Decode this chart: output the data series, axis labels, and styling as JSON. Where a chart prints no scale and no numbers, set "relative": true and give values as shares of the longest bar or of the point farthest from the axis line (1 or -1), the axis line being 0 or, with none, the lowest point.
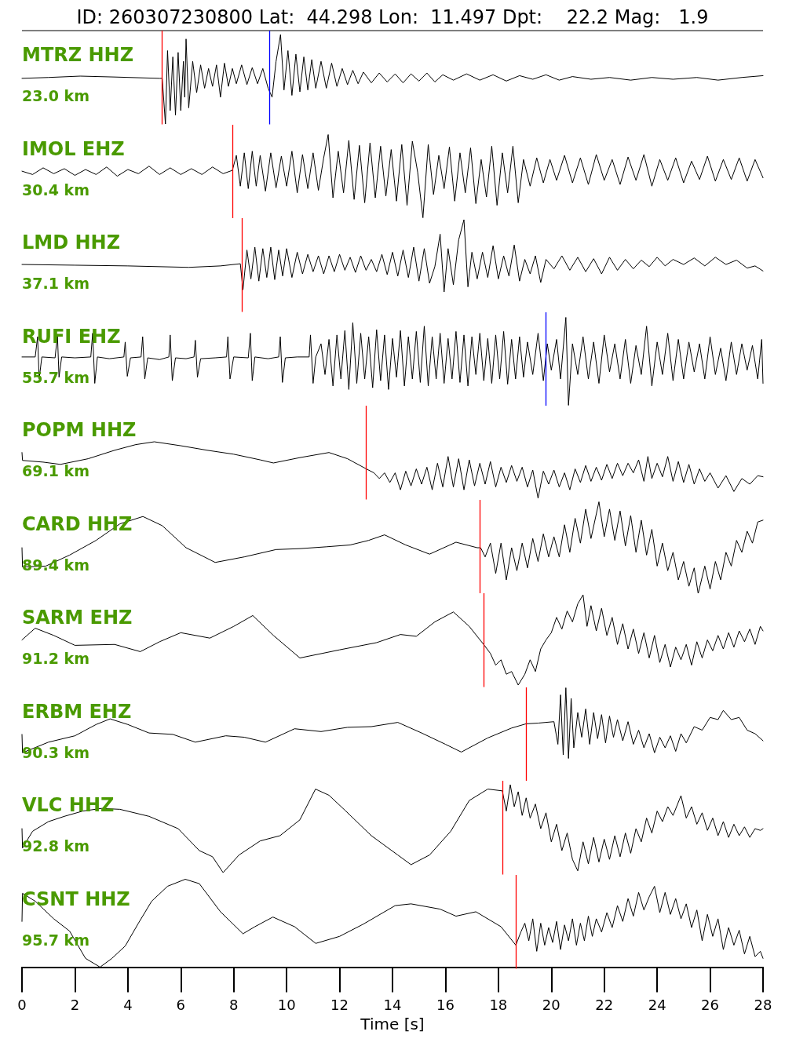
{
  "chart_data": [
    {
      "type": "line",
      "title": "ID: 260307230800 Lat:  44.298 Lon:  11.497 Dpt:    22.2 Mag:   1.9",
      "relative": true,
      "xlim": [
        0,
        28
      ],
      "tick_labels": false,
      "series": [
        {
          "name": "MTRZ HHZ",
          "color": "#000000",
          "x": [
            0,
            1,
            2.2,
            3.5,
            5.2,
            5.3,
            5.42,
            5.5,
            5.6,
            5.7,
            5.8,
            5.9,
            6,
            6.1,
            6.15,
            6.2,
            6.3,
            6.45,
            6.6,
            6.75,
            6.9,
            7.05,
            7.2,
            7.35,
            7.5,
            7.65,
            7.8,
            7.95,
            8.1,
            8.3,
            8.5,
            8.7,
            8.9,
            9.1,
            9.3,
            9.45,
            9.6,
            9.77,
            9.9,
            10.05,
            10.2,
            10.35,
            10.5,
            10.65,
            10.8,
            10.95,
            11.1,
            11.3,
            11.5,
            11.7,
            11.9,
            12.1,
            12.3,
            12.5,
            12.7,
            12.9,
            13.2,
            13.5,
            13.8,
            14.1,
            14.4,
            14.7,
            15,
            15.3,
            15.6,
            15.9,
            16.3,
            16.8,
            17.3,
            17.8,
            18.3,
            18.8,
            19.3,
            19.8,
            20.3,
            20.8,
            21.5,
            22.2,
            23,
            23.8,
            24.6,
            25.5,
            26.3,
            27.2,
            28
          ],
          "values": [
            0.51,
            0.52,
            0.535,
            0.525,
            0.51,
            0.51,
            0,
            0.82,
            0.15,
            0.75,
            0.1,
            0.8,
            0.15,
            0.7,
            0.3,
            0.95,
            0.18,
            0.7,
            0.35,
            0.66,
            0.4,
            0.62,
            0.42,
            0.66,
            0.3,
            0.68,
            0.42,
            0.62,
            0.45,
            0.66,
            0.44,
            0.63,
            0.45,
            0.62,
            0.4,
            0.3,
            0.7,
            1,
            0.38,
            0.82,
            0.32,
            0.78,
            0.36,
            0.75,
            0.38,
            0.72,
            0.4,
            0.7,
            0.4,
            0.68,
            0.42,
            0.62,
            0.44,
            0.6,
            0.45,
            0.58,
            0.46,
            0.57,
            0.47,
            0.56,
            0.46,
            0.56,
            0.48,
            0.57,
            0.47,
            0.55,
            0.49,
            0.56,
            0.49,
            0.55,
            0.48,
            0.54,
            0.5,
            0.55,
            0.49,
            0.53,
            0.5,
            0.52,
            0.49,
            0.52,
            0.5,
            0.52,
            0.49,
            0.52,
            0.54
          ]
        }
      ],
      "annotations": [
        "23.0 km"
      ],
      "ref_lines": [
        {
          "axis": "x",
          "value": 5.3,
          "color": "#ff0000"
        },
        {
          "axis": "x",
          "value": 9.35,
          "color": "#0000ff"
        }
      ]
    },
    {
      "type": "line",
      "relative": true,
      "xlim": [
        0,
        28
      ],
      "tick_labels": false,
      "series": [
        {
          "name": "IMOL EHZ",
          "color": "#000000",
          "x": [
            0,
            0.4,
            0.8,
            1.2,
            1.6,
            2,
            2.4,
            2.8,
            3.2,
            3.6,
            4,
            4.4,
            4.8,
            5.2,
            5.6,
            6,
            6.4,
            6.8,
            7.2,
            7.6,
            7.95,
            8.1,
            8.25,
            8.4,
            8.55,
            8.7,
            8.85,
            9,
            9.2,
            9.4,
            9.6,
            9.8,
            10,
            10.2,
            10.4,
            10.6,
            10.8,
            11,
            11.2,
            11.4,
            11.57,
            11.75,
            11.95,
            12.15,
            12.35,
            12.55,
            12.75,
            12.95,
            13.15,
            13.35,
            13.55,
            13.75,
            13.95,
            14.15,
            14.35,
            14.55,
            14.75,
            14.95,
            15.15,
            15.35,
            15.55,
            15.75,
            15.95,
            16.15,
            16.35,
            16.55,
            16.75,
            16.95,
            17.15,
            17.35,
            17.55,
            17.75,
            17.95,
            18.15,
            18.35,
            18.55,
            18.75,
            18.95,
            19.2,
            19.45,
            19.7,
            19.95,
            20.2,
            20.5,
            20.8,
            21.1,
            21.4,
            21.7,
            22,
            22.3,
            22.6,
            22.9,
            23.2,
            23.5,
            23.8,
            24.1,
            24.4,
            24.7,
            25,
            25.3,
            25.6,
            25.9,
            26.2,
            26.5,
            26.8,
            27.1,
            27.4,
            27.7,
            28
          ],
          "values": [
            0.56,
            0.52,
            0.6,
            0.53,
            0.59,
            0.51,
            0.58,
            0.52,
            0.61,
            0.5,
            0.58,
            0.53,
            0.62,
            0.52,
            0.6,
            0.52,
            0.59,
            0.52,
            0.61,
            0.53,
            0.57,
            0.75,
            0.38,
            0.78,
            0.35,
            0.8,
            0.38,
            0.75,
            0.32,
            0.78,
            0.36,
            0.74,
            0.38,
            0.8,
            0.3,
            0.76,
            0.35,
            0.78,
            0.33,
            0.72,
            1,
            0.24,
            0.8,
            0.3,
            0.93,
            0.22,
            0.87,
            0.18,
            0.9,
            0.24,
            0.86,
            0.26,
            0.82,
            0.2,
            0.88,
            0.15,
            0.92,
            0.55,
            0,
            0.88,
            0.28,
            0.75,
            0.35,
            0.85,
            0.2,
            0.78,
            0.3,
            0.84,
            0.17,
            0.7,
            0.25,
            0.86,
            0.15,
            0.78,
            0.3,
            0.86,
            0.18,
            0.7,
            0.38,
            0.72,
            0.42,
            0.7,
            0.45,
            0.75,
            0.42,
            0.72,
            0.4,
            0.76,
            0.45,
            0.7,
            0.4,
            0.73,
            0.45,
            0.76,
            0.38,
            0.7,
            0.45,
            0.72,
            0.42,
            0.68,
            0.46,
            0.74,
            0.44,
            0.7,
            0.46,
            0.72,
            0.44,
            0.7,
            0.48
          ]
        }
      ],
      "annotations": [
        "30.4 km"
      ],
      "ref_lines": [
        {
          "axis": "x",
          "value": 7.95,
          "color": "#ff0000"
        }
      ]
    },
    {
      "type": "line",
      "relative": true,
      "xlim": [
        0,
        28
      ],
      "tick_labels": false,
      "series": [
        {
          "name": "LMD HHZ",
          "color": "#000000",
          "x": [
            0,
            2,
            4,
            6.3,
            7.5,
            8.25,
            8.35,
            8.5,
            8.65,
            8.8,
            8.95,
            9.1,
            9.25,
            9.4,
            9.55,
            9.7,
            9.85,
            10,
            10.2,
            10.4,
            10.6,
            10.8,
            11,
            11.2,
            11.4,
            11.6,
            11.8,
            12,
            12.2,
            12.4,
            12.6,
            12.8,
            13,
            13.2,
            13.4,
            13.6,
            13.8,
            14,
            14.2,
            14.4,
            14.6,
            14.8,
            15,
            15.2,
            15.4,
            15.6,
            15.8,
            15.95,
            16.1,
            16.3,
            16.5,
            16.7,
            16.85,
            17,
            17.2,
            17.4,
            17.6,
            17.8,
            18,
            18.2,
            18.4,
            18.6,
            18.8,
            19,
            19.2,
            19.4,
            19.6,
            19.8,
            20.1,
            20.4,
            20.7,
            21,
            21.3,
            21.6,
            21.9,
            22.2,
            22.5,
            22.8,
            23.1,
            23.4,
            23.7,
            24,
            24.3,
            24.6,
            25,
            25.4,
            25.8,
            26.2,
            26.6,
            27,
            27.4,
            27.7,
            28
          ],
          "values": [
            0.38,
            0.37,
            0.36,
            0.34,
            0.36,
            0.39,
            0.03,
            0.58,
            0.18,
            0.62,
            0.15,
            0.6,
            0.2,
            0.62,
            0.17,
            0.58,
            0.22,
            0.6,
            0.2,
            0.55,
            0.25,
            0.52,
            0.28,
            0.5,
            0.25,
            0.5,
            0.28,
            0.52,
            0.3,
            0.48,
            0.27,
            0.5,
            0.3,
            0.45,
            0.28,
            0.52,
            0.24,
            0.55,
            0.22,
            0.58,
            0.2,
            0.62,
            0.15,
            0.6,
            0.12,
            0.35,
            0.8,
            0,
            0.6,
            0.1,
            0.72,
            1,
            0.07,
            0.55,
            0.18,
            0.55,
            0.2,
            0.64,
            0.18,
            0.5,
            0.22,
            0.65,
            0.15,
            0.45,
            0.25,
            0.5,
            0.13,
            0.45,
            0.32,
            0.5,
            0.3,
            0.48,
            0.28,
            0.46,
            0.25,
            0.48,
            0.3,
            0.45,
            0.32,
            0.44,
            0.35,
            0.48,
            0.36,
            0.45,
            0.38,
            0.47,
            0.36,
            0.48,
            0.38,
            0.44,
            0.33,
            0.36,
            0.29
          ]
        }
      ],
      "annotations": [
        "37.1 km"
      ],
      "ref_lines": [
        {
          "axis": "x",
          "value": 8.3,
          "color": "#ff0000"
        }
      ]
    },
    {
      "type": "line",
      "relative": true,
      "xlim": [
        0,
        28
      ],
      "tick_labels": false,
      "series": [
        {
          "name": "RUFI EHZ",
          "color": "#000000",
          "x": [
            0,
            0.5,
            0.59,
            0.65,
            0.75,
            1.25,
            1.34,
            1.4,
            1.5,
            2,
            2.6,
            2.67,
            2.75,
            2.85,
            3.3,
            3.85,
            3.9,
            3.98,
            4.1,
            4.5,
            4.56,
            4.64,
            4.75,
            5.2,
            5.55,
            5.6,
            5.68,
            5.8,
            6.2,
            6.5,
            6.55,
            6.63,
            6.75,
            7.3,
            7.73,
            7.78,
            7.86,
            8,
            8.55,
            8.63,
            8.7,
            8.8,
            9.3,
            9.7,
            9.76,
            9.84,
            9.95,
            10.4,
            10.85,
            10.9,
            11,
            11.1,
            11.3,
            11.45,
            11.6,
            11.75,
            11.9,
            12.05,
            12.2,
            12.35,
            12.5,
            12.65,
            12.8,
            12.95,
            13.1,
            13.25,
            13.4,
            13.55,
            13.7,
            13.85,
            14,
            14.15,
            14.3,
            14.45,
            14.6,
            14.75,
            14.9,
            15.05,
            15.2,
            15.35,
            15.5,
            15.65,
            15.8,
            15.95,
            16.1,
            16.25,
            16.4,
            16.55,
            16.7,
            16.85,
            17,
            17.15,
            17.3,
            17.45,
            17.6,
            17.75,
            17.9,
            18.05,
            18.2,
            18.35,
            18.5,
            18.65,
            18.8,
            18.95,
            19.1,
            19.3,
            19.5,
            19.7,
            19.85,
            20,
            20.2,
            20.35,
            20.55,
            20.65,
            20.8,
            21,
            21.2,
            21.4,
            21.6,
            21.8,
            22,
            22.2,
            22.4,
            22.6,
            22.8,
            23,
            23.2,
            23.4,
            23.6,
            23.8,
            24,
            24.2,
            24.4,
            24.6,
            24.8,
            25,
            25.2,
            25.4,
            25.6,
            25.8,
            26,
            26.2,
            26.4,
            26.6,
            26.8,
            27,
            27.2,
            27.4,
            27.6,
            27.8,
            27.95,
            28
          ],
          "values": [
            0.55,
            0.55,
            0.78,
            0.3,
            0.55,
            0.54,
            0.8,
            0.32,
            0.55,
            0.54,
            0.55,
            0.82,
            0.25,
            0.55,
            0.53,
            0.55,
            0.72,
            0.33,
            0.54,
            0.55,
            0.78,
            0.3,
            0.54,
            0.52,
            0.55,
            0.8,
            0.28,
            0.54,
            0.53,
            0.55,
            0.74,
            0.32,
            0.53,
            0.54,
            0.55,
            0.78,
            0.3,
            0.55,
            0.54,
            0.82,
            0.28,
            0.55,
            0.53,
            0.55,
            0.78,
            0.26,
            0.54,
            0.55,
            0.55,
            0.8,
            0.25,
            0.55,
            0.7,
            0.35,
            0.75,
            0.22,
            0.8,
            0.3,
            0.85,
            0.18,
            0.94,
            0.25,
            0.82,
            0.3,
            0.78,
            0.2,
            0.86,
            0.28,
            0.8,
            0.18,
            0.76,
            0.32,
            0.85,
            0.22,
            0.78,
            0.3,
            0.84,
            0.26,
            0.9,
            0.22,
            0.78,
            0.3,
            0.82,
            0.25,
            0.76,
            0.3,
            0.84,
            0.26,
            0.8,
            0.22,
            0.78,
            0.35,
            0.82,
            0.28,
            0.76,
            0.25,
            0.8,
            0.3,
            0.84,
            0.24,
            0.75,
            0.3,
            0.78,
            0.32,
            0.72,
            0.35,
            0.82,
            0.28,
            0.7,
            0.4,
            0.75,
            0.3,
            1,
            0,
            0.7,
            0.35,
            0.78,
            0.3,
            0.72,
            0.25,
            0.8,
            0.38,
            0.7,
            0.3,
            0.75,
            0.25,
            0.68,
            0.35,
            0.9,
            0.22,
            0.72,
            0.35,
            0.82,
            0.28,
            0.75,
            0.3,
            0.72,
            0.38,
            0.7,
            0.3,
            0.78,
            0.35,
            0.65,
            0.28,
            0.72,
            0.35,
            0.7,
            0.4,
            0.68,
            0.3,
            0.75,
            0.25
          ]
        }
      ],
      "annotations": [
        "55.7 km"
      ],
      "ref_lines": [
        {
          "axis": "x",
          "value": 19.8,
          "color": "#0000ff"
        }
      ]
    },
    {
      "type": "line",
      "relative": true,
      "xlim": [
        0,
        28
      ],
      "tick_labels": false,
      "series": [
        {
          "name": "POPM HHZ",
          "color": "#000000",
          "x": [
            0,
            0.02,
            0.8,
            1.45,
            2.5,
            3.5,
            4.3,
            5,
            6,
            7,
            8,
            9,
            9.5,
            10.5,
            11.6,
            12.3,
            13.05,
            13.3,
            13.5,
            13.7,
            13.9,
            14.1,
            14.3,
            14.5,
            14.7,
            14.9,
            15.1,
            15.3,
            15.5,
            15.7,
            15.9,
            16.1,
            16.3,
            16.5,
            16.7,
            16.9,
            17.1,
            17.3,
            17.5,
            17.7,
            17.9,
            18.1,
            18.3,
            18.5,
            18.7,
            18.9,
            19.1,
            19.3,
            19.5,
            19.7,
            19.9,
            20.1,
            20.3,
            20.5,
            20.7,
            20.9,
            21.1,
            21.3,
            21.5,
            21.7,
            21.9,
            22.1,
            22.3,
            22.5,
            22.7,
            22.9,
            23.1,
            23.3,
            23.5,
            23.65,
            23.8,
            24,
            24.2,
            24.4,
            24.6,
            24.8,
            25,
            25.2,
            25.4,
            25.6,
            25.8,
            26,
            26.3,
            26.6,
            26.9,
            27.2,
            27.5,
            27.8,
            28
          ],
          "values": [
            0.81,
            0.67,
            0.64,
            0.6,
            0.7,
            0.85,
            0.95,
            1,
            0.93,
            0.85,
            0.78,
            0.68,
            0.625,
            0.72,
            0.81,
            0.7,
            0.51,
            0.45,
            0.35,
            0.45,
            0.28,
            0.45,
            0.15,
            0.48,
            0.22,
            0.52,
            0.25,
            0.55,
            0.15,
            0.62,
            0.2,
            0.74,
            0.2,
            0.7,
            0.15,
            0.68,
            0.22,
            0.62,
            0.25,
            0.65,
            0.2,
            0.55,
            0.28,
            0.58,
            0.3,
            0.55,
            0.2,
            0.5,
            0,
            0.48,
            0.25,
            0.5,
            0.2,
            0.45,
            0.15,
            0.52,
            0.28,
            0.58,
            0.3,
            0.55,
            0.32,
            0.6,
            0.35,
            0.62,
            0.4,
            0.62,
            0.45,
            0.68,
            0.3,
            0.74,
            0.35,
            0.62,
            0.38,
            0.74,
            0.3,
            0.65,
            0.28,
            0.6,
            0.25,
            0.52,
            0.3,
            0.45,
            0.18,
            0.4,
            0.12,
            0.35,
            0.25,
            0.4,
            0.38
          ]
        }
      ],
      "annotations": [
        "69.1 km"
      ],
      "ref_lines": [
        {
          "axis": "x",
          "value": 13.0,
          "color": "#ff0000"
        }
      ]
    },
    {
      "type": "line",
      "relative": true,
      "xlim": [
        0,
        28
      ],
      "tick_labels": false,
      "series": [
        {
          "name": "CARD HHZ",
          "color": "#000000",
          "x": [
            0,
            0.02,
            0.9,
            1.8,
            2.8,
            3.7,
            4.57,
            5.3,
            6.2,
            7.3,
            8.4,
            9.6,
            10.5,
            11.5,
            12.4,
            13.1,
            13.7,
            14.5,
            15.4,
            16.4,
            17.2,
            17.33,
            17.5,
            17.7,
            17.9,
            18.1,
            18.3,
            18.5,
            18.7,
            18.9,
            19.1,
            19.3,
            19.5,
            19.7,
            19.9,
            20.1,
            20.3,
            20.5,
            20.7,
            20.9,
            21.1,
            21.3,
            21.5,
            21.8,
            22,
            22.2,
            22.4,
            22.6,
            22.8,
            23,
            23.2,
            23.4,
            23.6,
            23.8,
            24,
            24.2,
            24.4,
            24.6,
            24.8,
            25,
            25.2,
            25.4,
            25.55,
            25.8,
            26,
            26.2,
            26.4,
            26.6,
            26.8,
            27,
            27.2,
            27.4,
            27.6,
            27.8,
            28
          ],
          "values": [
            0.5,
            0.29,
            0.3,
            0.42,
            0.58,
            0.76,
            0.84,
            0.74,
            0.5,
            0.34,
            0.4,
            0.48,
            0.49,
            0.51,
            0.53,
            0.58,
            0.64,
            0.53,
            0.43,
            0.56,
            0.5,
            0.5,
            0.4,
            0.55,
            0.22,
            0.55,
            0.15,
            0.5,
            0.25,
            0.55,
            0.28,
            0.6,
            0.35,
            0.65,
            0.4,
            0.62,
            0.4,
            0.75,
            0.45,
            0.82,
            0.55,
            0.92,
            0.6,
            1,
            0.62,
            0.92,
            0.58,
            0.9,
            0.52,
            0.85,
            0.45,
            0.8,
            0.42,
            0.7,
            0.3,
            0.55,
            0.25,
            0.45,
            0.15,
            0.35,
            0.08,
            0.28,
            0,
            0.3,
            0.05,
            0.35,
            0.15,
            0.45,
            0.3,
            0.58,
            0.45,
            0.68,
            0.55,
            0.78,
            0.8
          ]
        }
      ],
      "annotations": [
        "89.4 km"
      ],
      "ref_lines": [
        {
          "axis": "x",
          "value": 17.3,
          "color": "#ff0000"
        }
      ]
    },
    {
      "type": "line",
      "relative": true,
      "xlim": [
        0,
        28
      ],
      "tick_labels": false,
      "series": [
        {
          "name": "SARM EHZ",
          "color": "#000000",
          "x": [
            0,
            0.5,
            1.2,
            2,
            3.5,
            4.47,
            5.2,
            6,
            7.1,
            8,
            8.72,
            9.5,
            10.5,
            12,
            13.4,
            14.3,
            14.9,
            15.6,
            16.3,
            16.9,
            17.47,
            17.7,
            17.9,
            18.1,
            18.3,
            18.5,
            18.75,
            19,
            19.2,
            19.4,
            19.6,
            19.8,
            20,
            20.2,
            20.4,
            20.6,
            20.8,
            21,
            21.2,
            21.35,
            21.5,
            21.7,
            21.9,
            22.1,
            22.3,
            22.5,
            22.7,
            22.9,
            23.1,
            23.3,
            23.5,
            23.7,
            23.9,
            24.1,
            24.3,
            24.5,
            24.7,
            24.9,
            25.1,
            25.3,
            25.5,
            25.7,
            25.9,
            26.1,
            26.3,
            26.5,
            26.7,
            26.9,
            27.1,
            27.3,
            27.5,
            27.7,
            27.9,
            28
          ],
          "values": [
            0.5,
            0.63,
            0.55,
            0.44,
            0.45,
            0.37,
            0.48,
            0.58,
            0.52,
            0.65,
            0.77,
            0.55,
            0.3,
            0.39,
            0.47,
            0.56,
            0.54,
            0.7,
            0.81,
            0.65,
            0.44,
            0.35,
            0.22,
            0.28,
            0.12,
            0.15,
            0,
            0.12,
            0.28,
            0.15,
            0.4,
            0.5,
            0.58,
            0.75,
            0.62,
            0.82,
            0.7,
            0.9,
            1,
            0.65,
            0.88,
            0.6,
            0.85,
            0.55,
            0.75,
            0.45,
            0.68,
            0.4,
            0.62,
            0.35,
            0.58,
            0.3,
            0.55,
            0.25,
            0.45,
            0.2,
            0.42,
            0.28,
            0.45,
            0.22,
            0.48,
            0.3,
            0.5,
            0.38,
            0.55,
            0.4,
            0.58,
            0.42,
            0.6,
            0.48,
            0.62,
            0.45,
            0.65,
            0.6
          ]
        }
      ],
      "annotations": [
        "91.2 km"
      ],
      "ref_lines": [
        {
          "axis": "x",
          "value": 17.45,
          "color": "#ff0000"
        }
      ]
    },
    {
      "type": "line",
      "relative": true,
      "xlim": [
        0,
        28
      ],
      "tick_labels": false,
      "series": [
        {
          "name": "ERBM EHZ",
          "color": "#000000",
          "x": [
            0,
            0.02,
            1,
            2,
            2.8,
            3.33,
            4,
            4.8,
            5.7,
            6.55,
            7.7,
            8.4,
            9.2,
            10.3,
            11.3,
            12.3,
            13.2,
            14.2,
            15.1,
            16,
            16.6,
            17.6,
            18.5,
            19.05,
            19.5,
            20.1,
            20.25,
            20.35,
            20.45,
            20.55,
            20.65,
            20.75,
            20.85,
            21,
            21.15,
            21.3,
            21.45,
            21.6,
            21.75,
            21.9,
            22.05,
            22.2,
            22.35,
            22.5,
            22.7,
            22.9,
            23.1,
            23.3,
            23.5,
            23.7,
            23.9,
            24.1,
            24.3,
            24.5,
            24.7,
            24.9,
            25.1,
            25.4,
            25.7,
            26,
            26.3,
            26.5,
            26.8,
            27.1,
            27.4,
            27.7,
            28
          ],
          "values": [
            0.34,
            0.08,
            0.23,
            0.32,
            0.48,
            0.56,
            0.48,
            0.36,
            0.34,
            0.23,
            0.32,
            0.3,
            0.23,
            0.42,
            0.38,
            0.44,
            0.45,
            0.51,
            0.36,
            0.2,
            0.09,
            0.29,
            0.43,
            0.49,
            0.5,
            0.52,
            0.2,
            0.9,
            0.05,
            1,
            0,
            0.85,
            0.15,
            0.65,
            0.3,
            0.7,
            0.2,
            0.65,
            0.28,
            0.62,
            0.22,
            0.6,
            0.3,
            0.55,
            0.25,
            0.52,
            0.2,
            0.4,
            0.15,
            0.35,
            0.08,
            0.3,
            0.15,
            0.32,
            0.1,
            0.35,
            0.22,
            0.45,
            0.4,
            0.58,
            0.55,
            0.68,
            0.55,
            0.58,
            0.4,
            0.35,
            0.25
          ]
        }
      ],
      "annotations": [
        "90.3 km"
      ],
      "ref_lines": [
        {
          "axis": "x",
          "value": 19.05,
          "color": "#ff0000"
        }
      ]
    },
    {
      "type": "line",
      "relative": true,
      "xlim": [
        0,
        28
      ],
      "tick_labels": false,
      "series": [
        {
          "name": "VLC HHZ",
          "color": "#000000",
          "x": [
            0,
            0.02,
            0.4,
            1,
            1.6,
            2.3,
            3,
            3.7,
            4.8,
            5.9,
            6.7,
            7.2,
            7.6,
            8.2,
            9,
            9.75,
            10.5,
            11.09,
            11.6,
            12.2,
            13.2,
            14.2,
            14.7,
            15.4,
            16.2,
            16.9,
            17.6,
            18.15,
            18.3,
            18.45,
            18.6,
            18.75,
            18.9,
            19.05,
            19.2,
            19.4,
            19.6,
            19.8,
            20,
            20.2,
            20.4,
            20.6,
            20.8,
            21,
            21.2,
            21.4,
            21.6,
            21.8,
            22,
            22.2,
            22.4,
            22.6,
            22.8,
            23,
            23.2,
            23.4,
            23.6,
            23.8,
            24,
            24.2,
            24.4,
            24.6,
            24.9,
            25.1,
            25.3,
            25.5,
            25.7,
            25.9,
            26.1,
            26.3,
            26.5,
            26.7,
            26.9,
            27.1,
            27.3,
            27.5,
            27.7,
            27.9,
            28
          ],
          "values": [
            0.5,
            0.28,
            0.47,
            0.58,
            0.64,
            0.7,
            0.73,
            0.72,
            0.64,
            0.5,
            0.25,
            0.18,
            0,
            0.2,
            0.36,
            0.42,
            0.6,
            0.95,
            0.88,
            0.71,
            0.42,
            0.2,
            0.09,
            0.2,
            0.47,
            0.82,
            0.95,
            0.93,
            0.7,
            1,
            0.75,
            0.92,
            0.65,
            0.85,
            0.62,
            0.78,
            0.5,
            0.68,
            0.35,
            0.55,
            0.25,
            0.45,
            0.15,
            0.02,
            0.35,
            0.1,
            0.4,
            0.12,
            0.38,
            0.15,
            0.42,
            0.18,
            0.45,
            0.22,
            0.5,
            0.35,
            0.62,
            0.45,
            0.7,
            0.58,
            0.75,
            0.65,
            0.875,
            0.62,
            0.75,
            0.55,
            0.68,
            0.48,
            0.62,
            0.42,
            0.58,
            0.4,
            0.55,
            0.42,
            0.52,
            0.4,
            0.5,
            0.48,
            0.5
          ]
        }
      ],
      "annotations": [
        "92.8 km"
      ],
      "ref_lines": [
        {
          "axis": "x",
          "value": 18.15,
          "color": "#ff0000"
        }
      ]
    },
    {
      "type": "line",
      "relative": true,
      "xlim": [
        0,
        28
      ],
      "xlabel": "Time [s]",
      "tick_labels": "x",
      "xticks": [
        0,
        2,
        4,
        6,
        8,
        10,
        12,
        14,
        16,
        18,
        20,
        22,
        24,
        26,
        28
      ],
      "series": [
        {
          "name": "CSNT HHZ",
          "color": "#000000",
          "x": [
            0,
            0.02,
            0.5,
            1.2,
            1.8,
            2.4,
            2.95,
            3.4,
            3.9,
            4.4,
            4.9,
            5.5,
            6.17,
            6.7,
            7.5,
            8.35,
            8.8,
            9.48,
            10.3,
            11.1,
            12,
            12.9,
            14.1,
            14.7,
            15.8,
            16.4,
            17.15,
            18.1,
            18.66,
            18.85,
            19,
            19.15,
            19.3,
            19.45,
            19.6,
            19.75,
            19.9,
            20.05,
            20.2,
            20.35,
            20.5,
            20.65,
            20.8,
            20.95,
            21.1,
            21.25,
            21.4,
            21.55,
            21.7,
            21.9,
            22.1,
            22.3,
            22.5,
            22.7,
            22.9,
            23.1,
            23.3,
            23.5,
            23.7,
            23.9,
            24.1,
            24.3,
            24.5,
            24.7,
            24.9,
            25.1,
            25.3,
            25.5,
            25.7,
            25.9,
            26.1,
            26.3,
            26.5,
            26.7,
            26.9,
            27.1,
            27.3,
            27.5,
            27.7,
            27.9,
            28
          ],
          "values": [
            0.52,
            0.84,
            0.75,
            0.55,
            0.41,
            0.1,
            0,
            0.1,
            0.24,
            0.5,
            0.75,
            0.92,
            1,
            0.95,
            0.63,
            0.38,
            0.46,
            0.57,
            0.46,
            0.27,
            0.35,
            0.49,
            0.7,
            0.72,
            0.66,
            0.58,
            0.63,
            0.46,
            0.25,
            0.4,
            0.5,
            0.3,
            0.55,
            0.18,
            0.5,
            0.25,
            0.45,
            0.28,
            0.52,
            0.2,
            0.48,
            0.3,
            0.55,
            0.25,
            0.5,
            0.3,
            0.58,
            0.35,
            0.55,
            0.4,
            0.62,
            0.45,
            0.7,
            0.52,
            0.78,
            0.58,
            0.85,
            0.65,
            0.8,
            0.92,
            0.62,
            0.85,
            0.6,
            0.78,
            0.55,
            0.72,
            0.45,
            0.65,
            0.3,
            0.6,
            0.35,
            0.55,
            0.2,
            0.45,
            0.25,
            0.42,
            0.15,
            0.35,
            0.12,
            0.18,
            0.1
          ]
        }
      ],
      "annotations": [
        "95.7 km"
      ],
      "ref_lines": [
        {
          "axis": "x",
          "value": 18.65,
          "color": "#ff0000"
        }
      ]
    }
  ]
}
